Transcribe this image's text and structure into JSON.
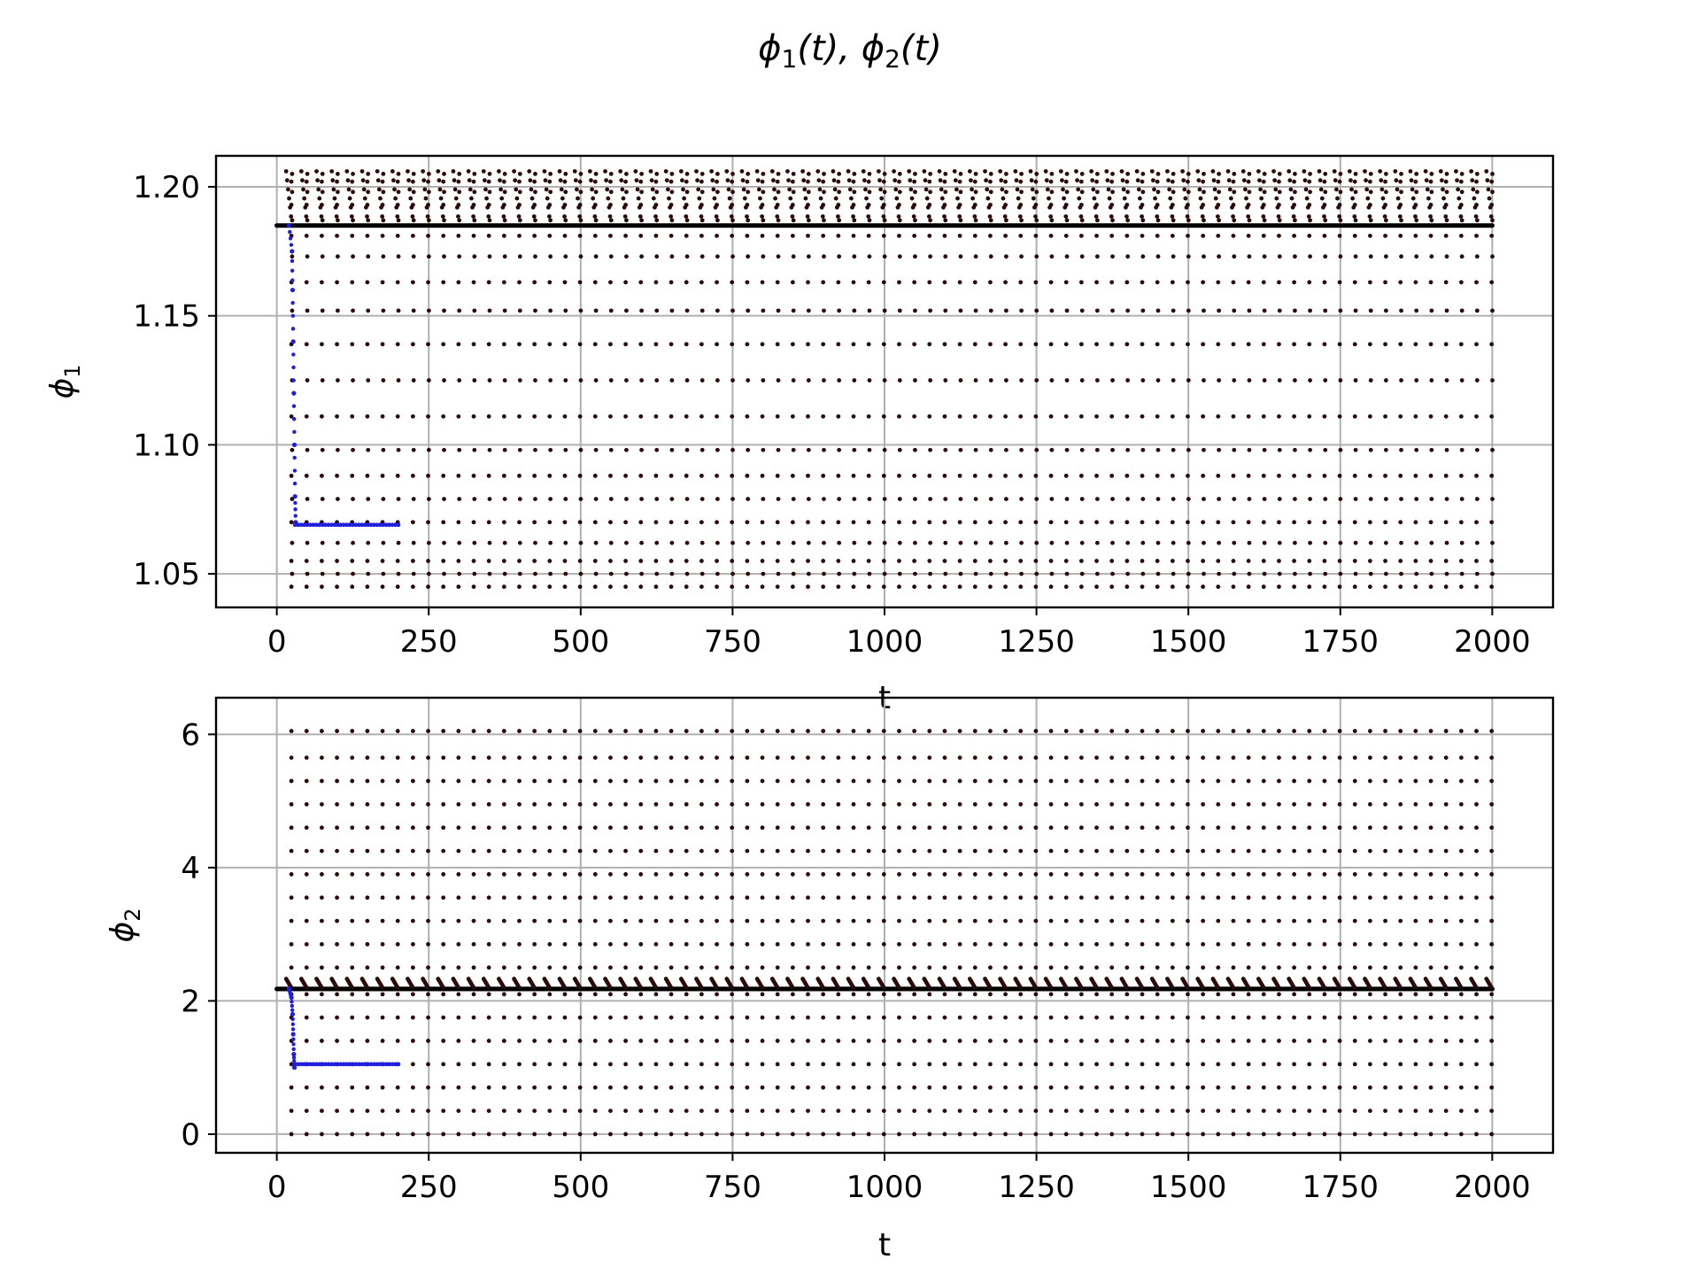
{
  "figure": {
    "suptitle_parts": [
      "ϕ",
      "1",
      "(t), ϕ",
      "2",
      "(t)"
    ]
  },
  "chart_data": [
    {
      "type": "scatter",
      "title": "",
      "xlabel": "t",
      "ylabel": "ϕ",
      "ylabel_sub": "1",
      "xlim": [
        -100,
        2100
      ],
      "ylim": [
        1.037,
        1.212
      ],
      "xticks": [
        0,
        250,
        500,
        750,
        1000,
        1250,
        1500,
        1750,
        2000
      ],
      "xtick_labels": [
        "0",
        "250",
        "500",
        "750",
        "1000",
        "1250",
        "1500",
        "1750",
        "2000"
      ],
      "yticks": [
        1.05,
        1.1,
        1.15,
        1.2
      ],
      "ytick_labels": [
        "1.05",
        "1.10",
        "1.15",
        "1.20"
      ],
      "grid": true,
      "period": 25,
      "t_start": 0,
      "t_end": 2000,
      "baseline": 1.185,
      "cycle_levels": [
        1.045,
        1.05,
        1.055,
        1.062,
        1.07,
        1.079,
        1.088,
        1.098,
        1.111,
        1.125,
        1.139,
        1.152,
        1.163,
        1.173,
        1.181,
        1.187,
        1.193,
        1.198,
        1.202,
        1.205
      ],
      "series": [
        {
          "name": "",
          "color": "#2b0a0a",
          "points": "attractor"
        },
        {
          "name": "",
          "color": "#1f1fdc",
          "transient": {
            "drop": [
              [
                20,
                1.185
              ],
              [
                25,
                1.175
              ],
              [
                26,
                1.16
              ],
              [
                27,
                1.14
              ],
              [
                28,
                1.12
              ],
              [
                29,
                1.1
              ],
              [
                30,
                1.08
              ],
              [
                31,
                1.07
              ]
            ],
            "plateau_y": 1.069,
            "plateau_x": [
              30,
              200
            ]
          }
        }
      ]
    },
    {
      "type": "scatter",
      "title": "",
      "xlabel": "t",
      "ylabel": "ϕ",
      "ylabel_sub": "2",
      "xlim": [
        -100,
        2100
      ],
      "ylim": [
        -0.28,
        6.55
      ],
      "xticks": [
        0,
        250,
        500,
        750,
        1000,
        1250,
        1500,
        1750,
        2000
      ],
      "xtick_labels": [
        "0",
        "250",
        "500",
        "750",
        "1000",
        "1250",
        "1500",
        "1750",
        "2000"
      ],
      "yticks": [
        0,
        2,
        4,
        6
      ],
      "ytick_labels": [
        "0",
        "2",
        "4",
        "6"
      ],
      "grid": true,
      "period": 25,
      "t_start": 0,
      "t_end": 2000,
      "baseline": 2.18,
      "cycle_levels": [
        0.0,
        0.35,
        0.7,
        1.05,
        1.4,
        1.75,
        2.1,
        2.5,
        2.85,
        3.2,
        3.55,
        3.9,
        4.25,
        4.6,
        4.95,
        5.3,
        5.65,
        6.05
      ],
      "series": [
        {
          "name": "",
          "color": "#2b0a0a",
          "points": "attractor"
        },
        {
          "name": "",
          "color": "#1f1fdc",
          "transient": {
            "drop": [
              [
                20,
                2.18
              ],
              [
                24,
                2.05
              ],
              [
                26,
                1.8
              ],
              [
                27,
                1.5
              ],
              [
                28,
                1.2
              ],
              [
                29,
                1.0
              ]
            ],
            "plateau_y": 1.05,
            "plateau_x": [
              30,
              200
            ]
          }
        }
      ]
    }
  ]
}
